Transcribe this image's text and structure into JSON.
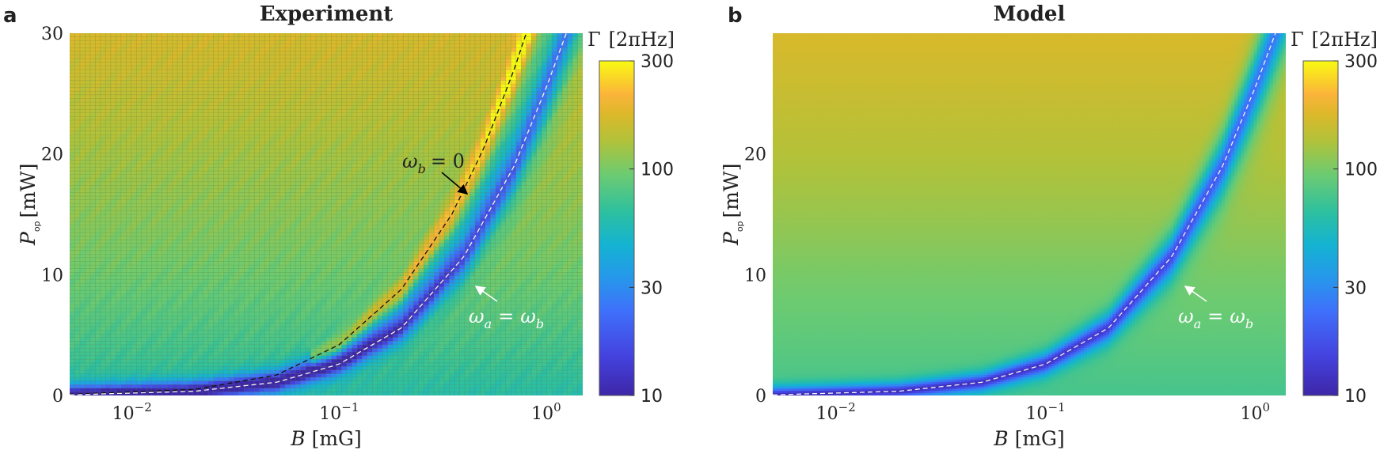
{
  "figure": {
    "panels": [
      {
        "letter": "a",
        "title": "Experiment"
      },
      {
        "letter": "b",
        "title": "Model"
      }
    ]
  },
  "chart_data": [
    {
      "type": "heatmap",
      "title": "Experiment",
      "panel_label": "a",
      "xlabel": "B [mG]",
      "ylabel": "P_op [mW]",
      "xscale": "log",
      "xlim": [
        0.005,
        1.5
      ],
      "ylim": [
        0,
        30
      ],
      "xticks": [
        {
          "value": 0.01,
          "label": "10^-2"
        },
        {
          "value": 0.1,
          "label": "10^-1"
        },
        {
          "value": 1,
          "label": "10^0"
        }
      ],
      "yticks": [
        0,
        10,
        20,
        30
      ],
      "colorbar": {
        "label": "Γ [2πHz]",
        "scale": "log",
        "range": [
          10,
          300
        ],
        "ticks": [
          10,
          30,
          100,
          300
        ],
        "colormap": "parula"
      },
      "curves": [
        {
          "name": "ω_b = 0",
          "style": "black-dashed",
          "points": [
            [
              0.005,
              0.1
            ],
            [
              0.02,
              0.5
            ],
            [
              0.05,
              1.7
            ],
            [
              0.1,
              4.2
            ],
            [
              0.2,
              8.8
            ],
            [
              0.35,
              15
            ],
            [
              0.5,
              20.5
            ],
            [
              0.7,
              27
            ],
            [
              0.8,
              30
            ]
          ]
        },
        {
          "name": "ω_a = ω_b",
          "style": "white-dashed",
          "points": [
            [
              0.005,
              0.05
            ],
            [
              0.02,
              0.35
            ],
            [
              0.05,
              1.1
            ],
            [
              0.1,
              2.6
            ],
            [
              0.2,
              5.6
            ],
            [
              0.4,
              11.5
            ],
            [
              0.7,
              19
            ],
            [
              1.0,
              25.5
            ],
            [
              1.25,
              30
            ]
          ]
        }
      ],
      "annotations": [
        {
          "text": "ω_b = 0",
          "color": "black",
          "points_to": "ω_b = 0 curve"
        },
        {
          "text": "ω_a = ω_b",
          "color": "white",
          "points_to": "ω_a = ω_b curve"
        }
      ],
      "background_gamma_trend": {
        "at_P_0": 60,
        "at_P_10": 95,
        "at_P_20": 125,
        "at_P_30": 170
      }
    },
    {
      "type": "heatmap",
      "title": "Model",
      "panel_label": "b",
      "xlabel": "B [mG]",
      "ylabel": "P_op [mW]",
      "xscale": "log",
      "xlim": [
        0.005,
        1.4
      ],
      "ylim": [
        0,
        30
      ],
      "xticks": [
        {
          "value": 0.01,
          "label": "10^-2"
        },
        {
          "value": 0.1,
          "label": "10^-1"
        },
        {
          "value": 1,
          "label": "10^0"
        }
      ],
      "yticks": [
        0,
        10,
        20
      ],
      "colorbar": {
        "label": "Γ [2πHz]",
        "scale": "log",
        "range": [
          10,
          300
        ],
        "ticks": [
          10,
          30,
          100,
          300
        ],
        "colormap": "parula"
      },
      "curves": [
        {
          "name": "ω_a = ω_b",
          "style": "white-dashed",
          "points": [
            [
              0.005,
              0.05
            ],
            [
              0.02,
              0.35
            ],
            [
              0.05,
              1.1
            ],
            [
              0.1,
              2.6
            ],
            [
              0.2,
              5.6
            ],
            [
              0.4,
              11.5
            ],
            [
              0.7,
              19
            ],
            [
              1.0,
              25.5
            ],
            [
              1.25,
              30
            ]
          ]
        }
      ],
      "annotations": [
        {
          "text": "ω_a = ω_b",
          "color": "white",
          "points_to": "ω_a = ω_b curve"
        }
      ],
      "background_gamma_trend": {
        "at_P_0": 75,
        "at_P_10": 100,
        "at_P_20": 135,
        "at_P_30": 170
      }
    }
  ],
  "labels": {
    "x_axis": "B",
    "x_unit": "[mG]",
    "y_axis": "P",
    "y_sub": "op",
    "y_unit": "[mW]",
    "cbar_symbol": "Γ",
    "cbar_unit": "[2πHz]",
    "omega_b0": "ω",
    "omega_b0_sub": "b",
    "omega_b0_rhs": "= 0",
    "omega_eq_a": "ω",
    "omega_eq_a_sub": "a",
    "omega_eq_mid": "=",
    "omega_eq_b": "ω",
    "omega_eq_b_sub": "b"
  }
}
